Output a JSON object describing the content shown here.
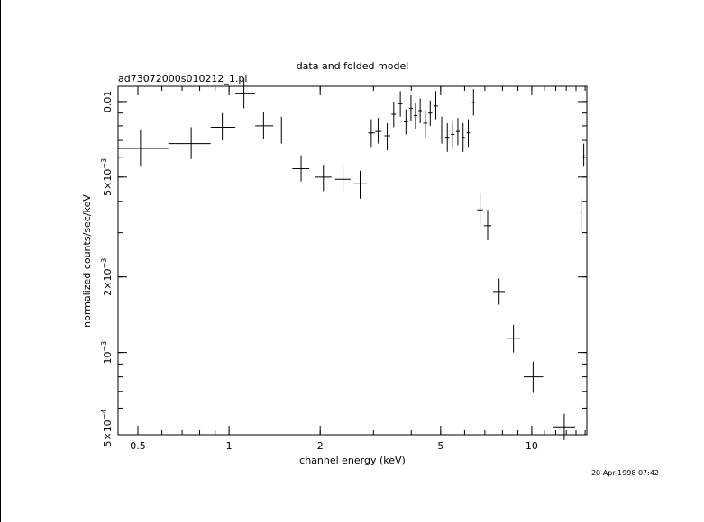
{
  "chart_data": {
    "type": "scatter",
    "title": "data and folded model",
    "subtitle": "ad73072000s010212_1.pi",
    "xlabel": "channel energy (keV)",
    "ylabel": "normalized counts/sec/keV",
    "timestamp": "20-Apr-1998 07:42",
    "xscale": "log",
    "yscale": "log",
    "xlim": [
      0.43,
      15.2
    ],
    "ylim": [
      0.00047,
      0.0115
    ],
    "x_ticks": [
      {
        "value": 0.5,
        "label": "0.5"
      },
      {
        "value": 1,
        "label": "1"
      },
      {
        "value": 2,
        "label": "2"
      },
      {
        "value": 5,
        "label": "5"
      },
      {
        "value": 10,
        "label": "10"
      }
    ],
    "y_ticks": [
      {
        "value": 0.0005,
        "mant": "5×10",
        "exp": "−4"
      },
      {
        "value": 0.001,
        "mant": "10",
        "exp": "−3"
      },
      {
        "value": 0.002,
        "mant": "2×10",
        "exp": "−3"
      },
      {
        "value": 0.005,
        "mant": "5×10",
        "exp": "−3"
      },
      {
        "value": 0.01,
        "mant": "0.01",
        "exp": ""
      }
    ],
    "series": [
      {
        "points": [
          {
            "x": 0.51,
            "xlo": 0.43,
            "xhi": 0.63,
            "y": 0.0065,
            "ylo": 0.0055,
            "yhi": 0.0077
          },
          {
            "x": 0.75,
            "xlo": 0.63,
            "xhi": 0.87,
            "y": 0.0068,
            "ylo": 0.0059,
            "yhi": 0.0079
          },
          {
            "x": 0.95,
            "xlo": 0.87,
            "xhi": 1.05,
            "y": 0.0079,
            "ylo": 0.007,
            "yhi": 0.009
          },
          {
            "x": 1.12,
            "xlo": 1.05,
            "xhi": 1.22,
            "y": 0.0108,
            "ylo": 0.0094,
            "yhi": 0.0124
          },
          {
            "x": 1.3,
            "xlo": 1.22,
            "xhi": 1.4,
            "y": 0.008,
            "ylo": 0.0071,
            "yhi": 0.0091
          },
          {
            "x": 1.49,
            "xlo": 1.4,
            "xhi": 1.58,
            "y": 0.0077,
            "ylo": 0.0068,
            "yhi": 0.0087
          },
          {
            "x": 1.73,
            "xlo": 1.62,
            "xhi": 1.84,
            "y": 0.0054,
            "ylo": 0.0048,
            "yhi": 0.0061
          },
          {
            "x": 2.05,
            "xlo": 1.93,
            "xhi": 2.18,
            "y": 0.005,
            "ylo": 0.0044,
            "yhi": 0.0056
          },
          {
            "x": 2.38,
            "xlo": 2.24,
            "xhi": 2.52,
            "y": 0.0049,
            "ylo": 0.0043,
            "yhi": 0.0055
          },
          {
            "x": 2.71,
            "xlo": 2.58,
            "xhi": 2.85,
            "y": 0.0047,
            "ylo": 0.0041,
            "yhi": 0.0053
          },
          {
            "x": 2.95,
            "xlo": 2.88,
            "xhi": 3.03,
            "y": 0.0075,
            "ylo": 0.0066,
            "yhi": 0.0085
          },
          {
            "x": 3.11,
            "xlo": 3.04,
            "xhi": 3.19,
            "y": 0.0076,
            "ylo": 0.0068,
            "yhi": 0.0086
          },
          {
            "x": 3.33,
            "xlo": 3.26,
            "xhi": 3.41,
            "y": 0.0073,
            "ylo": 0.0064,
            "yhi": 0.0082
          },
          {
            "x": 3.5,
            "xlo": 3.44,
            "xhi": 3.56,
            "y": 0.0089,
            "ylo": 0.0079,
            "yhi": 0.01
          },
          {
            "x": 3.68,
            "xlo": 3.62,
            "xhi": 3.74,
            "y": 0.0098,
            "ylo": 0.0087,
            "yhi": 0.011
          },
          {
            "x": 3.84,
            "xlo": 3.78,
            "xhi": 3.9,
            "y": 0.0083,
            "ylo": 0.0074,
            "yhi": 0.0093
          },
          {
            "x": 3.99,
            "xlo": 3.93,
            "xhi": 4.05,
            "y": 0.0094,
            "ylo": 0.0084,
            "yhi": 0.0106
          },
          {
            "x": 4.13,
            "xlo": 4.07,
            "xhi": 4.19,
            "y": 0.0088,
            "ylo": 0.0078,
            "yhi": 0.0099
          },
          {
            "x": 4.28,
            "xlo": 4.22,
            "xhi": 4.34,
            "y": 0.0092,
            "ylo": 0.0082,
            "yhi": 0.0103
          },
          {
            "x": 4.45,
            "xlo": 4.38,
            "xhi": 4.52,
            "y": 0.0082,
            "ylo": 0.0072,
            "yhi": 0.0092
          },
          {
            "x": 4.62,
            "xlo": 4.55,
            "xhi": 4.69,
            "y": 0.009,
            "ylo": 0.008,
            "yhi": 0.0101
          },
          {
            "x": 4.82,
            "xlo": 4.74,
            "xhi": 4.9,
            "y": 0.0096,
            "ylo": 0.0085,
            "yhi": 0.011
          },
          {
            "x": 5.04,
            "xlo": 4.96,
            "xhi": 5.12,
            "y": 0.0077,
            "ylo": 0.0068,
            "yhi": 0.0087
          },
          {
            "x": 5.26,
            "xlo": 5.18,
            "xhi": 5.34,
            "y": 0.0072,
            "ylo": 0.0063,
            "yhi": 0.0082
          },
          {
            "x": 5.48,
            "xlo": 5.4,
            "xhi": 5.56,
            "y": 0.0074,
            "ylo": 0.0065,
            "yhi": 0.0084
          },
          {
            "x": 5.7,
            "xlo": 5.62,
            "xhi": 5.78,
            "y": 0.0076,
            "ylo": 0.0067,
            "yhi": 0.0086
          },
          {
            "x": 5.93,
            "xlo": 5.85,
            "xhi": 6.01,
            "y": 0.0072,
            "ylo": 0.0063,
            "yhi": 0.0082
          },
          {
            "x": 6.17,
            "xlo": 6.09,
            "xhi": 6.25,
            "y": 0.0075,
            "ylo": 0.0066,
            "yhi": 0.0085
          },
          {
            "x": 6.42,
            "xlo": 6.34,
            "xhi": 6.5,
            "y": 0.0099,
            "ylo": 0.0088,
            "yhi": 0.0112
          },
          {
            "x": 6.75,
            "xlo": 6.6,
            "xhi": 6.9,
            "y": 0.0037,
            "ylo": 0.0032,
            "yhi": 0.0043
          },
          {
            "x": 7.15,
            "xlo": 6.95,
            "xhi": 7.35,
            "y": 0.0032,
            "ylo": 0.0028,
            "yhi": 0.0037
          },
          {
            "x": 7.8,
            "xlo": 7.45,
            "xhi": 8.15,
            "y": 0.00175,
            "ylo": 0.00155,
            "yhi": 0.00197
          },
          {
            "x": 8.7,
            "xlo": 8.25,
            "xhi": 9.15,
            "y": 0.00114,
            "ylo": 0.001,
            "yhi": 0.00129
          },
          {
            "x": 10.1,
            "xlo": 9.4,
            "xhi": 10.9,
            "y": 0.0008,
            "ylo": 0.00069,
            "yhi": 0.00092
          },
          {
            "x": 12.8,
            "xlo": 11.8,
            "xhi": 13.9,
            "y": 0.000505,
            "ylo": 0.000447,
            "yhi": 0.00057
          },
          {
            "x": 14.55,
            "xlo": 14.48,
            "xhi": 14.62,
            "y": 0.0036,
            "ylo": 0.0031,
            "yhi": 0.0041
          },
          {
            "x": 14.85,
            "xlo": 14.78,
            "xhi": 14.92,
            "y": 0.0061,
            "ylo": 0.0055,
            "yhi": 0.0068
          }
        ]
      }
    ]
  }
}
